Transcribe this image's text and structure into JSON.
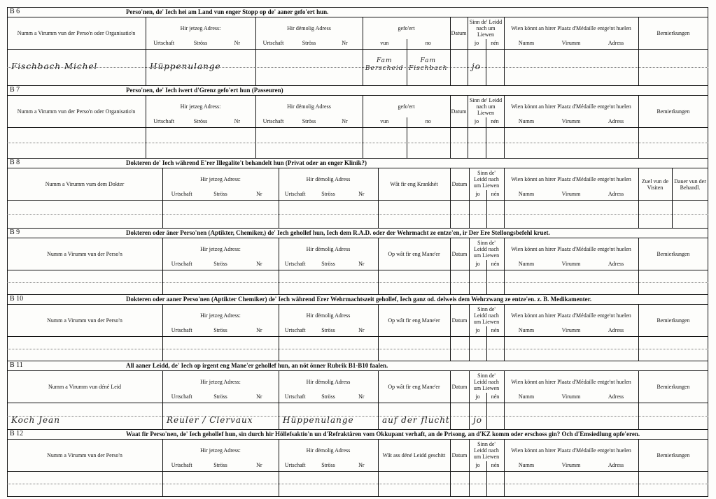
{
  "sections": [
    {
      "code": "B 6",
      "title": "Perso'nen, de' Iech hei am Land vun enger Stopp op de' aaner gefo'ert hun.",
      "columns": [
        {
          "label": "Numm a Virumm vun der Perso'n oder Organisatio'n"
        },
        {
          "label": "Hir jetzeg Adress:",
          "sub": [
            "Urtschaft",
            "Ströss",
            "Nr"
          ]
        },
        {
          "label": "Hir dëmolig Adress",
          "sub": [
            "Urtschaft",
            "Ströss",
            "Nr"
          ]
        },
        {
          "label": "gefo'ert",
          "sub": [
            "vun",
            "no"
          ]
        },
        {
          "label": "Datum"
        },
        {
          "label": "Sinn de' Leidd nach um Liewen",
          "sub": [
            "jo",
            "nén"
          ]
        },
        {
          "label": "Wien könnt an hirer Plaatz d'Médaille entge'nt huelen",
          "sub": [
            "Numm",
            "Virumm",
            "Adress"
          ]
        },
        {
          "label": "Bemierkungen"
        }
      ],
      "entry": [
        "Fischbach Michel",
        "Hüppenulange",
        null,
        [
          "Fam Berscheid",
          "Fam Fischbach"
        ],
        null,
        "jo",
        null,
        null
      ]
    },
    {
      "code": "B 7",
      "title": "Perso'nen, de' Iech iwert d'Grenz gefo'ert hun (Passeuren)",
      "columns": [
        {
          "label": "Numm a Virumm vun der Perso'n oder Organisatio'n"
        },
        {
          "label": "Hir jetzeg Adress:",
          "sub": [
            "Urtschaft",
            "Ströss",
            "Nr"
          ]
        },
        {
          "label": "Hir dëmolig Adress",
          "sub": [
            "Urtschaft",
            "Ströss",
            "Nr"
          ]
        },
        {
          "label": "gefo'ert",
          "sub": [
            "vun",
            "no"
          ]
        },
        {
          "label": "Datum"
        },
        {
          "label": "Sinn de' Leidd nach um Liewen",
          "sub": [
            "jo",
            "nén"
          ]
        },
        {
          "label": "Wien könnt an hirer Plaatz d'Médaille entge'nt huelen",
          "sub": [
            "Numm",
            "Virumm",
            "Adress"
          ]
        },
        {
          "label": "Bemierkungen"
        }
      ]
    },
    {
      "code": "B 8",
      "title": "Dokteren de' Iech während E'rer Illegalite't behandelt hun (Privat oder an enger Klinik?)",
      "columns": [
        {
          "label": "Numm a Virumm vum dem Dokter"
        },
        {
          "label": "Hir jetzeg Adress:",
          "sub": [
            "Urtschaft",
            "Ströss",
            "Nr"
          ]
        },
        {
          "label": "Hir dëmolig Adress",
          "sub": [
            "Urtschaft",
            "Ströss",
            "Nr"
          ]
        },
        {
          "label": "Wât fir eng Krankhét"
        },
        {
          "label": "Datum"
        },
        {
          "label": "Sinn de' Leidd nach um Liewen",
          "sub": [
            "jo",
            "nén"
          ]
        },
        {
          "label": "Wien könnt an hirer Plaatz d'Médaille entge'nt huelen",
          "sub": [
            "Numm",
            "Virumm",
            "Adress"
          ]
        },
        {
          "label": "Zuel vun de Visiten"
        },
        {
          "label": "Dauer vun der Behandl."
        }
      ]
    },
    {
      "code": "B 9",
      "title": "Dokteren oder äner Perso'nen (Aptikter, Chemiker,) de' Iech gehollef hun, Iech dem R.A.D. oder der Wehrmacht ze entze'en, ir Der Ere Stellongsbefehl kruet.",
      "columns": [
        {
          "label": "Numm a Virumm vun der Perso'n"
        },
        {
          "label": "Hir jetzeg Adress:",
          "sub": [
            "Urtschaft",
            "Ströss",
            "Nr"
          ]
        },
        {
          "label": "Hir dëmolig Adress",
          "sub": [
            "Urtschaft",
            "Ströss",
            "Nr"
          ]
        },
        {
          "label": "Op wât fir eng Mane'er"
        },
        {
          "label": "Datum"
        },
        {
          "label": "Sinn de' Leidd nach um Liewen",
          "sub": [
            "jo",
            "nén"
          ]
        },
        {
          "label": "Wien könnt an hirer Plaatz d'Médaille entge'nt huelen",
          "sub": [
            "Numm",
            "Virumm",
            "Adress"
          ]
        },
        {
          "label": "Bemierkungen"
        }
      ]
    },
    {
      "code": "B 10",
      "title": "Dokteren oder aaner Perso'nen (Aptikter Chemiker) de' Iech während Erer Wehrmachtszeit gehollef, Iech ganz od. delweis dem Wehrzwang ze entze'en. z. B. Medikamenter.",
      "columns": [
        {
          "label": "Numm a Virumm vun der Perso'n"
        },
        {
          "label": "Hir jetzeg Adress:",
          "sub": [
            "Urtschaft",
            "Ströss",
            "Nr"
          ]
        },
        {
          "label": "Hir dëmolig Adress",
          "sub": [
            "Urtschaft",
            "Ströss",
            "Nr"
          ]
        },
        {
          "label": "Op wât fir eng Mane'er"
        },
        {
          "label": "Datum"
        },
        {
          "label": "Sinn de' Leidd nach um Liewen",
          "sub": [
            "jo",
            "nén"
          ]
        },
        {
          "label": "Wien könnt an hirer Plaatz d'Médaille entge'nt huelen",
          "sub": [
            "Numm",
            "Virumm",
            "Adress"
          ]
        },
        {
          "label": "Bemierkungen"
        }
      ]
    },
    {
      "code": "B 11",
      "title": "All aaner Leidd, de' Iech op irgent eng Mane'er gehollef hun, an nöt önner Rubrik B1-B10 faalen.",
      "columns": [
        {
          "label": "Numm a Virumm vun déné Leid"
        },
        {
          "label": "Hir jetzeg Adress:",
          "sub": [
            "Urtschaft",
            "Ströss",
            "Nr"
          ]
        },
        {
          "label": "Hir dëmolig Adress",
          "sub": [
            "Urtschaft",
            "Ströss",
            "Nr"
          ]
        },
        {
          "label": "Op wât fir eng Mane'er"
        },
        {
          "label": "Datum"
        },
        {
          "label": "Sinn de' Leidd nach um Liewen",
          "sub": [
            "jo",
            "nén"
          ]
        },
        {
          "label": "Wien könnt an hirer Plaatz d'Médaille entge'nt huelen",
          "sub": [
            "Numm",
            "Virumm",
            "Adress"
          ]
        },
        {
          "label": "Bemierkungen"
        }
      ],
      "entry": [
        "Koch Jean",
        "Reuler / Clervaux",
        "Hüppenulange",
        "auf der flucht",
        null,
        "jo",
        null,
        null
      ]
    },
    {
      "code": "B 12",
      "title": "Waat fir Perso'nen, de' Iech gehollef hun, sin durch hir Höllefsaktio'n un d'Refraktären vom Okkupant verhaft, an de Prisong, an d'KZ komm oder erschoss gin? Och d'Emsiedlung opfe'eren.",
      "columns": [
        {
          "label": "Numm a Virumm vun der Perso'n"
        },
        {
          "label": "Hir jetzeg Adress:",
          "sub": [
            "Urtschaft",
            "Ströss",
            "Nr"
          ]
        },
        {
          "label": "Hir dëmolig Adress",
          "sub": [
            "Urtschaft",
            "Ströss",
            "Nr"
          ]
        },
        {
          "label": "Wât ass déné Leidd geschitt"
        },
        {
          "label": "Datum"
        },
        {
          "label": "Sinn de' Leidd nach um Liewen",
          "sub": [
            "jo",
            "nén"
          ]
        },
        {
          "label": "Wien könnt an hirer Plaatz d'Médaille entge'nt huelen",
          "sub": [
            "Numm",
            "Virumm",
            "Adress"
          ]
        },
        {
          "label": "Bemierkungen"
        }
      ]
    }
  ]
}
